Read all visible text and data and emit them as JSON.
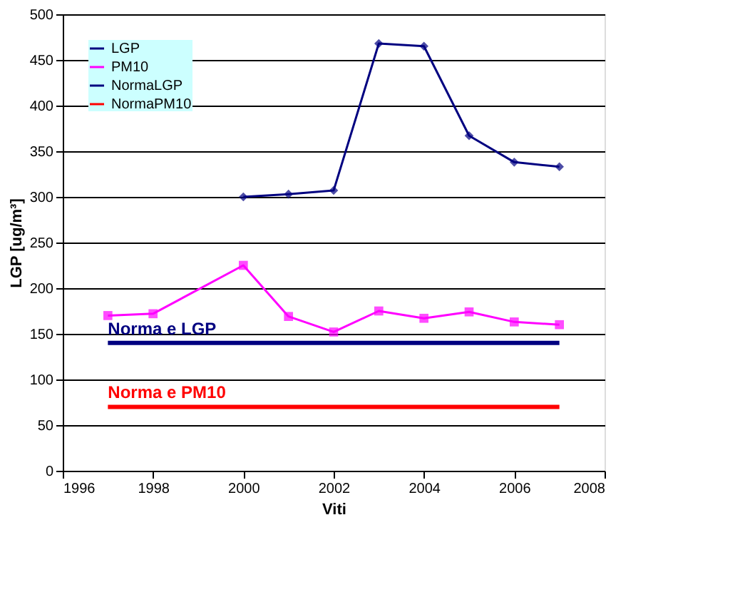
{
  "chart_data": {
    "type": "line",
    "xlabel": "Viti",
    "ylabel": "LGP [ug/m³]",
    "xlim": [
      1996,
      2008
    ],
    "xticks": [
      1996,
      1998,
      2000,
      2002,
      2004,
      2006,
      2008
    ],
    "ylim": [
      0,
      500
    ],
    "yticks": [
      0,
      50,
      100,
      150,
      200,
      250,
      300,
      350,
      400,
      450,
      500
    ],
    "grid": "y",
    "legend": "top left",
    "series": [
      {
        "name": "LGP",
        "color": "#000080",
        "marker": "diamond",
        "x": [
          2000,
          2001,
          2002,
          2003,
          2004,
          2005,
          2006,
          2007
        ],
        "values": [
          300,
          303,
          307,
          468,
          465,
          367,
          338,
          333
        ]
      },
      {
        "name": "PM10",
        "color": "#ff00ff",
        "marker": "square",
        "x": [
          1997,
          1998,
          2000,
          2001,
          2002,
          2003,
          2004,
          2005,
          2006,
          2007
        ],
        "values": [
          170,
          172,
          225,
          169,
          152,
          175,
          167,
          174,
          163,
          160
        ]
      },
      {
        "name": "NormaLGP",
        "color": "#000080",
        "marker": "none",
        "x": [
          1997,
          2007
        ],
        "values": [
          140,
          140
        ]
      },
      {
        "name": "NormaPM10",
        "color": "#ff0000",
        "marker": "none",
        "x": [
          1997,
          2007
        ],
        "values": [
          70,
          70
        ]
      }
    ],
    "annotations": [
      {
        "text": "Norma e LGP",
        "x": 1997,
        "y": 140
      },
      {
        "text": "Norma e PM10",
        "x": 1997,
        "y": 70
      }
    ]
  }
}
